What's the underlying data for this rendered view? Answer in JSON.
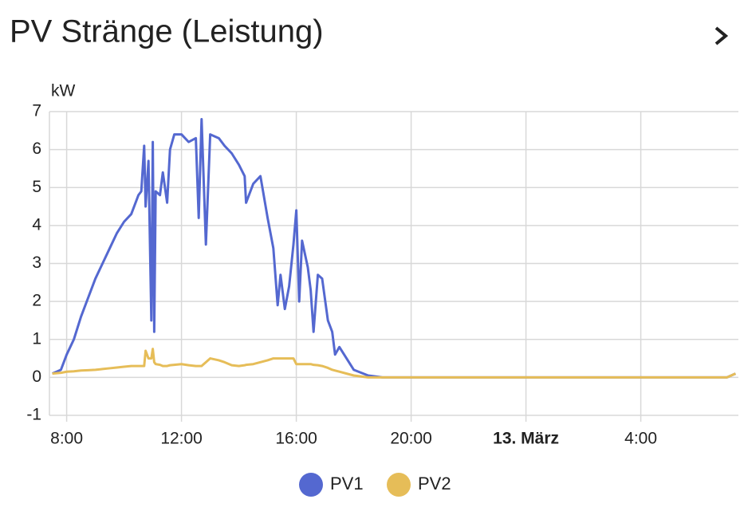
{
  "chart_data": {
    "type": "line",
    "title": "PV Stränge (Leistung)",
    "y_label": "kW",
    "x": [
      7.5,
      7.8,
      8,
      8.25,
      8.5,
      8.75,
      9,
      9.25,
      9.5,
      9.75,
      10,
      10.25,
      10.5,
      10.6,
      10.7,
      10.75,
      10.85,
      10.95,
      11,
      11.05,
      11.1,
      11.25,
      11.35,
      11.5,
      11.6,
      11.75,
      12,
      12.25,
      12.5,
      12.6,
      12.7,
      12.85,
      13,
      13.3,
      13.5,
      13.75,
      14,
      14.2,
      14.25,
      14.5,
      14.75,
      15,
      15.2,
      15.35,
      15.45,
      15.6,
      15.75,
      15.9,
      16,
      16.1,
      16.2,
      16.4,
      16.5,
      16.6,
      16.75,
      16.9,
      17.1,
      17.25,
      17.35,
      17.5,
      17.75,
      18,
      18.5,
      19,
      20,
      24,
      28,
      31,
      31.3
    ],
    "series": [
      {
        "name": "PV1",
        "color": "#5468d0",
        "values": [
          0.1,
          0.2,
          0.6,
          1.0,
          1.6,
          2.1,
          2.6,
          3.0,
          3.4,
          3.8,
          4.1,
          4.3,
          4.8,
          4.9,
          6.1,
          4.5,
          5.7,
          1.5,
          6.2,
          1.2,
          4.9,
          4.8,
          5.4,
          4.6,
          6.0,
          6.4,
          6.4,
          6.2,
          6.3,
          4.2,
          6.8,
          3.5,
          6.4,
          6.3,
          6.1,
          5.9,
          5.6,
          5.3,
          4.6,
          5.1,
          5.3,
          4.2,
          3.4,
          1.9,
          2.7,
          1.8,
          2.4,
          3.5,
          4.4,
          2.0,
          3.6,
          2.9,
          2.3,
          1.2,
          2.7,
          2.6,
          1.5,
          1.2,
          0.6,
          0.8,
          0.5,
          0.2,
          0.05,
          0,
          0,
          0,
          0,
          0,
          0.1
        ]
      },
      {
        "name": "PV2",
        "color": "#e6bd58",
        "values": [
          0.1,
          0.12,
          0.15,
          0.16,
          0.18,
          0.19,
          0.2,
          0.22,
          0.24,
          0.26,
          0.28,
          0.3,
          0.3,
          0.3,
          0.3,
          0.7,
          0.5,
          0.5,
          0.75,
          0.4,
          0.35,
          0.33,
          0.3,
          0.3,
          0.32,
          0.33,
          0.35,
          0.32,
          0.3,
          0.3,
          0.3,
          0.4,
          0.5,
          0.45,
          0.4,
          0.32,
          0.3,
          0.32,
          0.33,
          0.35,
          0.4,
          0.45,
          0.5,
          0.5,
          0.5,
          0.5,
          0.5,
          0.5,
          0.35,
          0.35,
          0.35,
          0.35,
          0.35,
          0.33,
          0.32,
          0.3,
          0.25,
          0.2,
          0.18,
          0.15,
          0.1,
          0.05,
          0,
          0,
          0,
          0,
          0,
          0,
          0.1
        ]
      }
    ],
    "xlim": [
      7.4,
      31.4
    ],
    "xticks": [
      {
        "value": 8,
        "label": "8:00"
      },
      {
        "value": 12,
        "label": "12:00"
      },
      {
        "value": 16,
        "label": "16:00"
      },
      {
        "value": 20,
        "label": "20:00"
      },
      {
        "value": 24,
        "label": "13. März"
      },
      {
        "value": 28,
        "label": "4:00"
      }
    ],
    "ylim": [
      -1,
      7
    ],
    "yticks": [
      -1,
      0,
      1,
      2,
      3,
      4,
      5,
      6,
      7
    ],
    "grid": true
  }
}
